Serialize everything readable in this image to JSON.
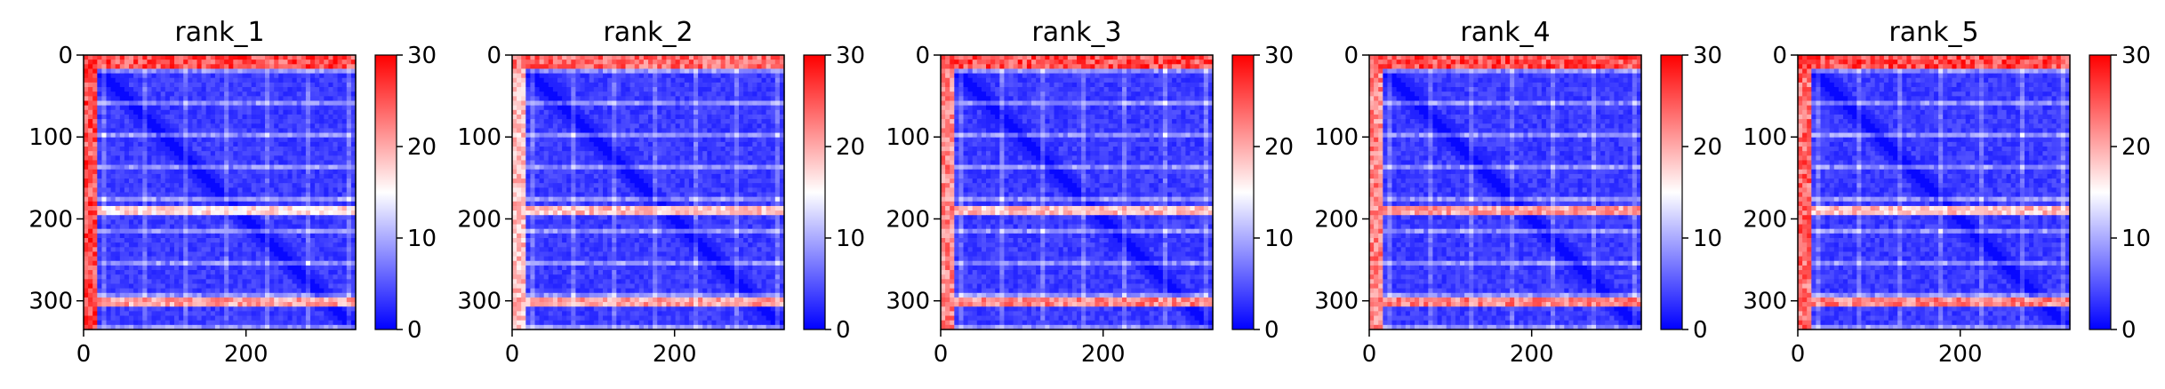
{
  "colors": {
    "low": "#0000ff",
    "mid": "#ffffff",
    "high": "#ff0000",
    "axis": "#000000"
  },
  "chart_data": [
    {
      "type": "heatmap",
      "title": "rank_1",
      "xlim": [
        0,
        335
      ],
      "ylim": [
        335,
        0
      ],
      "xticks": [
        0,
        200
      ],
      "yticks": [
        0,
        100,
        200,
        300
      ],
      "colorbar": {
        "range": [
          0,
          30
        ],
        "ticks": [
          0,
          10,
          20,
          30
        ]
      },
      "n_residues": 335,
      "high_distance_bands": [
        {
          "axis": "rows",
          "from": 0,
          "to": 16,
          "value_max": 30
        },
        {
          "axis": "cols",
          "from": 0,
          "to": 16,
          "value_max": 30
        },
        {
          "axis": "rows",
          "from": 187,
          "to": 194,
          "value_max": 20
        },
        {
          "axis": "rows",
          "from": 298,
          "to": 305,
          "value_max": 24
        }
      ],
      "diagonal_value": 0
    },
    {
      "type": "heatmap",
      "title": "rank_2",
      "xlim": [
        0,
        335
      ],
      "ylim": [
        335,
        0
      ],
      "xticks": [
        0,
        200
      ],
      "yticks": [
        0,
        100,
        200,
        300
      ],
      "colorbar": {
        "range": [
          0,
          30
        ],
        "ticks": [
          0,
          10,
          20,
          30
        ]
      },
      "n_residues": 335,
      "high_distance_bands": [
        {
          "axis": "rows",
          "from": 0,
          "to": 16,
          "value_max": 28
        },
        {
          "axis": "cols",
          "from": 0,
          "to": 16,
          "value_max": 22
        },
        {
          "axis": "rows",
          "from": 187,
          "to": 194,
          "value_max": 22
        },
        {
          "axis": "rows",
          "from": 298,
          "to": 305,
          "value_max": 24
        }
      ],
      "diagonal_value": 0
    },
    {
      "type": "heatmap",
      "title": "rank_3",
      "xlim": [
        0,
        335
      ],
      "ylim": [
        335,
        0
      ],
      "xticks": [
        0,
        200
      ],
      "yticks": [
        0,
        100,
        200,
        300
      ],
      "colorbar": {
        "range": [
          0,
          30
        ],
        "ticks": [
          0,
          10,
          20,
          30
        ]
      },
      "n_residues": 335,
      "high_distance_bands": [
        {
          "axis": "rows",
          "from": 0,
          "to": 16,
          "value_max": 30
        },
        {
          "axis": "cols",
          "from": 0,
          "to": 16,
          "value_max": 26
        },
        {
          "axis": "rows",
          "from": 187,
          "to": 194,
          "value_max": 22
        },
        {
          "axis": "rows",
          "from": 298,
          "to": 305,
          "value_max": 26
        }
      ],
      "diagonal_value": 0
    },
    {
      "type": "heatmap",
      "title": "rank_4",
      "xlim": [
        0,
        335
      ],
      "ylim": [
        335,
        0
      ],
      "xticks": [
        0,
        200
      ],
      "yticks": [
        0,
        100,
        200,
        300
      ],
      "colorbar": {
        "range": [
          0,
          30
        ],
        "ticks": [
          0,
          10,
          20,
          30
        ]
      },
      "n_residues": 335,
      "high_distance_bands": [
        {
          "axis": "rows",
          "from": 0,
          "to": 16,
          "value_max": 30
        },
        {
          "axis": "cols",
          "from": 0,
          "to": 16,
          "value_max": 26
        },
        {
          "axis": "rows",
          "from": 187,
          "to": 194,
          "value_max": 24
        },
        {
          "axis": "rows",
          "from": 298,
          "to": 305,
          "value_max": 26
        }
      ],
      "diagonal_value": 0
    },
    {
      "type": "heatmap",
      "title": "rank_5",
      "xlim": [
        0,
        335
      ],
      "ylim": [
        335,
        0
      ],
      "xticks": [
        0,
        200
      ],
      "yticks": [
        0,
        100,
        200,
        300
      ],
      "colorbar": {
        "range": [
          0,
          30
        ],
        "ticks": [
          0,
          10,
          20,
          30
        ]
      },
      "n_residues": 335,
      "high_distance_bands": [
        {
          "axis": "rows",
          "from": 0,
          "to": 16,
          "value_max": 30
        },
        {
          "axis": "cols",
          "from": 0,
          "to": 16,
          "value_max": 28
        },
        {
          "axis": "rows",
          "from": 187,
          "to": 194,
          "value_max": 22
        },
        {
          "axis": "rows",
          "from": 298,
          "to": 305,
          "value_max": 26
        }
      ],
      "diagonal_value": 0
    }
  ]
}
